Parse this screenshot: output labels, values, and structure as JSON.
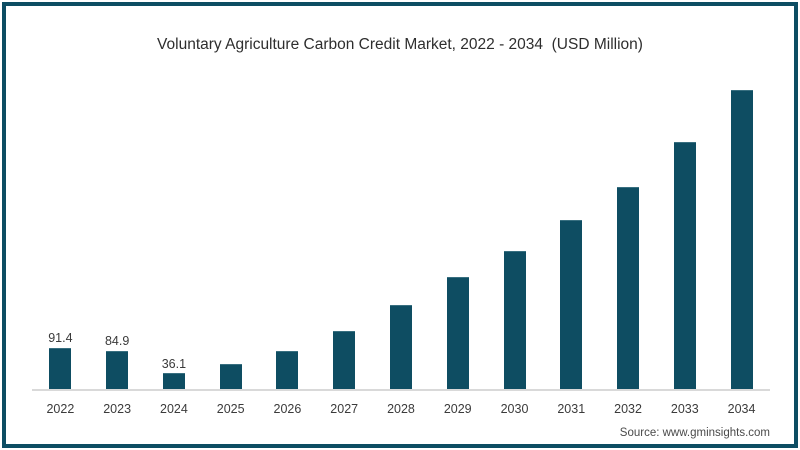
{
  "chart_data": {
    "type": "bar",
    "title": "Voluntary Agriculture Carbon Credit Market, 2022 - 2034  (USD Million)",
    "categories": [
      "2022",
      "2023",
      "2024",
      "2025",
      "2026",
      "2027",
      "2028",
      "2029",
      "2030",
      "2031",
      "2032",
      "2033",
      "2034"
    ],
    "values": [
      91.4,
      84.9,
      36.1,
      56,
      84,
      128,
      184,
      244,
      301,
      367,
      439,
      537,
      650
    ],
    "data_labels": [
      "91.4",
      "84.9",
      "36.1",
      "",
      "",
      "",
      "",
      "",
      "",
      "",
      "",
      "",
      ""
    ],
    "xlabel": "",
    "ylabel": "",
    "ylim": [
      0,
      660
    ],
    "grid": false,
    "legend": "none",
    "bar_color": "#0e4d62",
    "bar_edge_color": "#386f80",
    "axis_line_color": "#d9d9d9",
    "label_color": "#3a3a3a",
    "title_color": "#2e2e2e"
  },
  "frame": {
    "border_color": "#0d4d63"
  },
  "footer": {
    "source": "Source: www.gminsights.com"
  }
}
